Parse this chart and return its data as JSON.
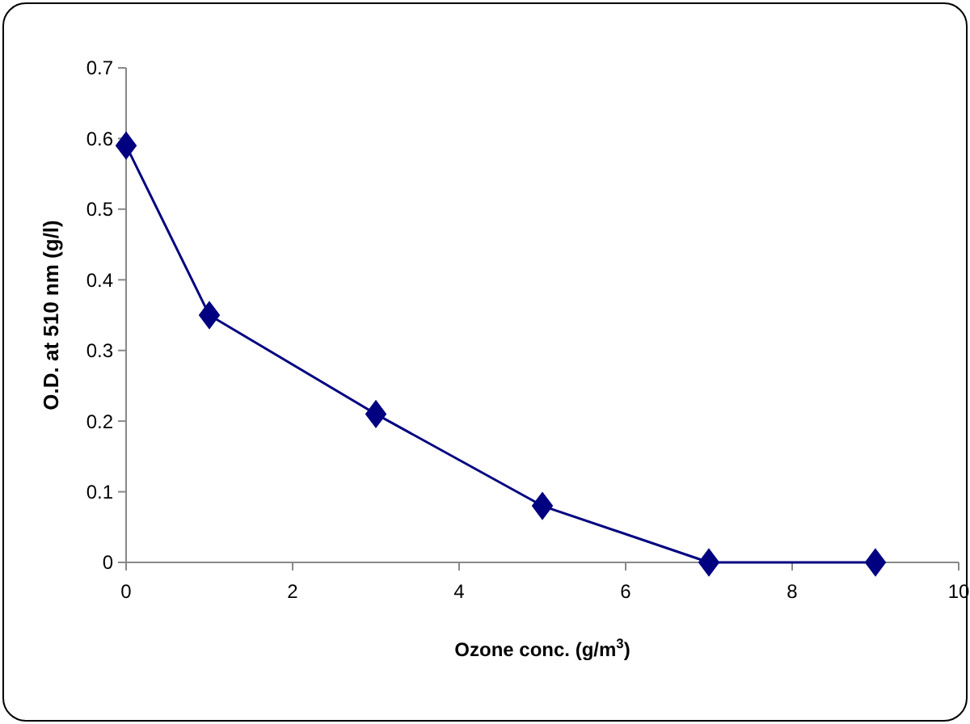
{
  "chart_data": {
    "type": "line",
    "xlabel": "Ozone conc. (g/m$^{3}$)",
    "ylabel": "O.D. at 510 nm (g/l)",
    "series": [
      {
        "color": "#000080",
        "x": [
          0,
          1,
          3,
          5,
          7,
          9
        ],
        "values": [
          0.59,
          0.35,
          0.21,
          0.08,
          0,
          0
        ]
      }
    ],
    "xlim": [
      0,
      10
    ],
    "xticks": [
      0,
      2,
      4,
      6,
      8,
      10
    ],
    "ylim": [
      0,
      0.7
    ],
    "yticks": [
      0,
      0.1,
      0.2,
      0.3,
      0.4,
      0.5,
      0.6,
      0.7
    ],
    "marker": "diamond",
    "line_style": "solid",
    "grid": false
  }
}
